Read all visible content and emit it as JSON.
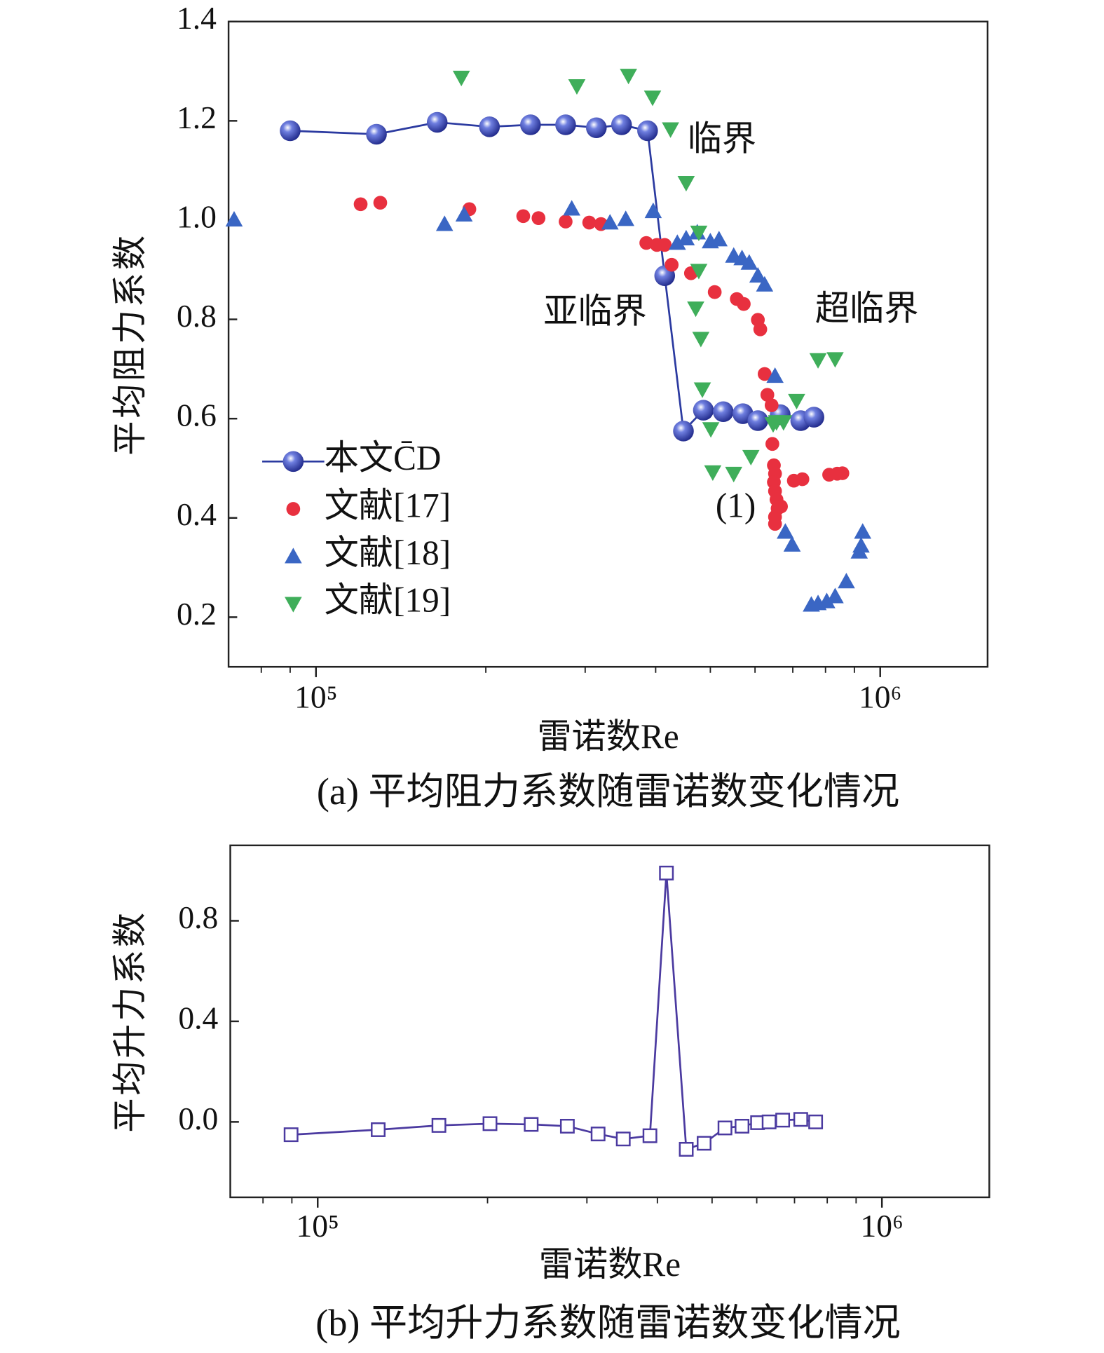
{
  "chart_data": [
    {
      "type": "line",
      "xscale": "log",
      "xlabel": "雷诺数Re",
      "ylabel": "平均阻力系数",
      "caption": "(a) 平均阻力系数随雷诺数变化情况",
      "xlim": [
        70000,
        1550000
      ],
      "ylim": [
        0.1,
        1.4
      ],
      "xticks": [
        {
          "value": 100000,
          "label": "10⁵"
        },
        {
          "value": 1000000,
          "label": "10⁶"
        }
      ],
      "xminorticks": [
        80000,
        90000,
        200000,
        300000,
        400000,
        500000,
        600000,
        700000,
        800000,
        900000
      ],
      "yticks": [
        0.2,
        0.4,
        0.6,
        0.8,
        {
          "value": 1,
          "label": "1.0"
        },
        1.2,
        1.4
      ],
      "annotations": [
        "临界",
        "亚临界",
        "超临界",
        "(1)"
      ],
      "series": [
        {
          "name": "本文C̄D",
          "color": "#2b3aa0",
          "marker": "sphere",
          "line": true,
          "x": [
            90000,
            128000,
            164000,
            203000,
            240000,
            277000,
            314000,
            348000,
            387000,
            415000,
            448000,
            486000,
            527000,
            571000,
            607000,
            665000,
            723000,
            763000
          ],
          "values": [
            1.18,
            1.173,
            1.197,
            1.188,
            1.192,
            1.192,
            1.186,
            1.192,
            1.18,
            0.888,
            0.575,
            0.617,
            0.614,
            0.61,
            0.596,
            0.608,
            0.596,
            0.603
          ]
        },
        {
          "name": "文献[17]",
          "color": "#e8303f",
          "marker": "circle",
          "line": false,
          "x": [
            120000,
            130000,
            187000,
            233000,
            248000,
            277000,
            305000,
            320000,
            385000,
            402000,
            415000,
            427000,
            462000,
            509000,
            557000,
            573000,
            607000,
            613000,
            624000,
            631000,
            642000,
            644000,
            648000,
            651000,
            648000,
            651000,
            655000,
            658000,
            651000,
            651000,
            667000,
            703000,
            728000,
            812000,
            839000,
            857000
          ],
          "values": [
            1.032,
            1.035,
            1.022,
            1.008,
            1.004,
            0.997,
            0.995,
            0.992,
            0.954,
            0.95,
            0.95,
            0.91,
            0.893,
            0.855,
            0.841,
            0.831,
            0.799,
            0.78,
            0.69,
            0.648,
            0.627,
            0.549,
            0.506,
            0.489,
            0.472,
            0.454,
            0.437,
            0.419,
            0.402,
            0.388,
            0.423,
            0.475,
            0.478,
            0.487,
            0.489,
            0.49
          ]
        },
        {
          "name": "文献[18]",
          "color": "#3a66c4",
          "marker": "triangle-up",
          "line": false,
          "x": [
            71600,
            169000,
            183000,
            284000,
            332000,
            354000,
            396000,
            437000,
            453000,
            474000,
            500000,
            518000,
            550000,
            569000,
            586000,
            607000,
            624000,
            651000,
            679000,
            698000,
            755000,
            776000,
            804000,
            832000,
            871000,
            918000,
            925000,
            931000
          ],
          "values": [
            1.001,
            0.992,
            1.011,
            1.023,
            0.995,
            1.002,
            1.018,
            0.954,
            0.963,
            0.975,
            0.957,
            0.961,
            0.928,
            0.923,
            0.914,
            0.888,
            0.87,
            0.686,
            0.372,
            0.346,
            0.225,
            0.228,
            0.232,
            0.242,
            0.272,
            0.332,
            0.344,
            0.372
          ]
        },
        {
          "name": "文献[19]",
          "color": "#3fae5a",
          "marker": "triangle-down",
          "line": false,
          "x": [
            181000,
            290000,
            358000,
            395000,
            425000,
            453000,
            477000,
            477000,
            471000,
            481000,
            484000,
            501000,
            505000,
            550000,
            590000,
            646000,
            655000,
            674000,
            711000,
            776000,
            832000
          ],
          "values": [
            1.287,
            1.27,
            1.291,
            1.247,
            1.183,
            1.075,
            0.975,
            0.898,
            0.822,
            0.761,
            0.659,
            0.579,
            0.492,
            0.489,
            0.523,
            0.589,
            0.593,
            0.593,
            0.636,
            0.718,
            0.72
          ]
        }
      ]
    },
    {
      "type": "line",
      "xscale": "log",
      "xlabel": "雷诺数Re",
      "ylabel": "平均升力系数",
      "caption": "(b) 平均升力系数随雷诺数变化情况",
      "xlim": [
        70000,
        1550000
      ],
      "ylim": [
        -0.3,
        1.1
      ],
      "xticks": [
        {
          "value": 100000,
          "label": "10⁵"
        },
        {
          "value": 1000000,
          "label": "10⁶"
        }
      ],
      "xminorticks": [
        80000,
        90000,
        200000,
        300000,
        400000,
        500000,
        600000,
        700000,
        800000,
        900000
      ],
      "yticks": [
        {
          "value": 0,
          "label": "0.0"
        },
        0.4,
        0.8
      ],
      "series": [
        {
          "color": "#4b3aa0",
          "marker": "square",
          "line": true,
          "x": [
            89700,
            128000,
            164000,
            202000,
            239000,
            277000,
            314000,
            348000,
            388000,
            415000,
            450000,
            484000,
            527000,
            565000,
            602000,
            631000,
            667000,
            718000,
            763000
          ],
          "values": [
            -0.051,
            -0.031,
            -0.014,
            -0.007,
            -0.01,
            -0.017,
            -0.048,
            -0.068,
            -0.055,
            0.99,
            -0.109,
            -0.085,
            -0.024,
            -0.017,
            -0.003,
            0,
            0.007,
            0.01,
            0
          ]
        }
      ]
    }
  ]
}
